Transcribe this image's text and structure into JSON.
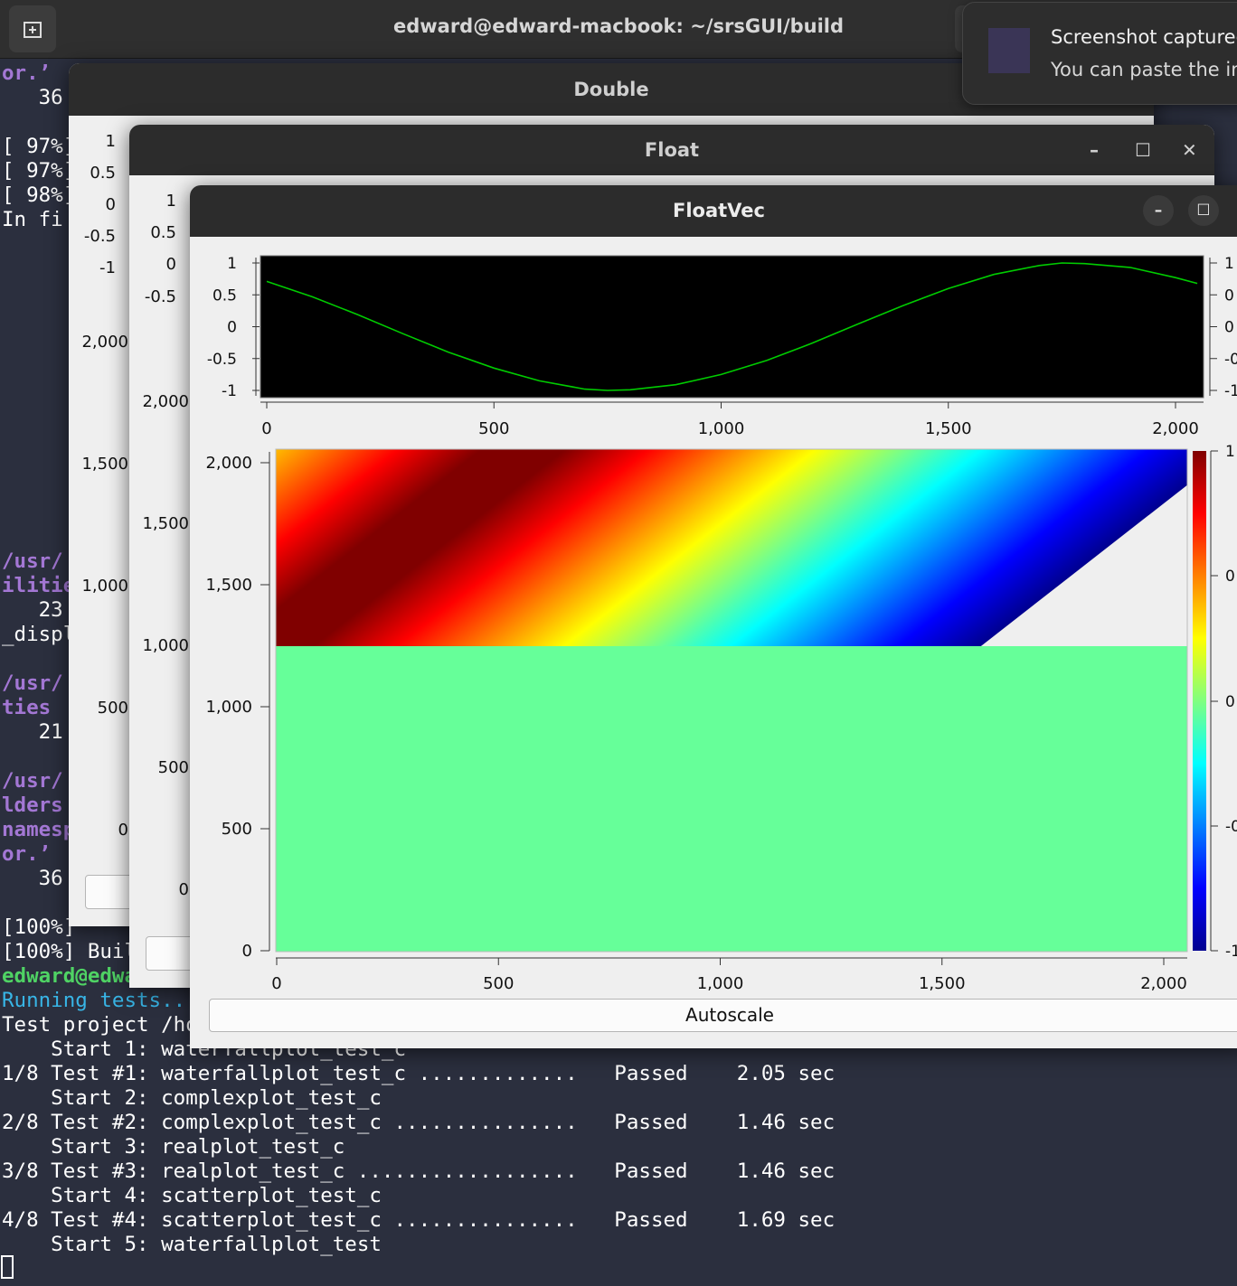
{
  "terminal": {
    "title": "edward@edward-macbook: ~/srsGUI/build",
    "lines_top": [
      {
        "text": "or.’",
        "cls": "purple"
      },
      {
        "text": "   36",
        "cls": ""
      },
      {
        "text": "",
        "cls": ""
      },
      {
        "text": "[ 97%]",
        "cls": ""
      },
      {
        "text": "[ 97%]",
        "cls": ""
      },
      {
        "text": "[ 98%]",
        "cls": ""
      },
      {
        "text": "In fi",
        "cls": ""
      }
    ],
    "lines_mid": [
      {
        "text": "/usr/",
        "cls": "purple"
      },
      {
        "text": "ilitie",
        "cls": "purple"
      },
      {
        "text": "   23",
        "cls": ""
      },
      {
        "text": "_displ",
        "cls": ""
      },
      {
        "text": "",
        "cls": ""
      },
      {
        "text": "/usr/",
        "cls": "purple"
      },
      {
        "text": "ties ",
        "cls": "purple"
      },
      {
        "text": "   21",
        "cls": ""
      },
      {
        "text": "",
        "cls": ""
      },
      {
        "text": "/usr/",
        "cls": "purple"
      },
      {
        "text": "lders",
        "cls": "purple"
      },
      {
        "text": "namesp",
        "cls": "purple"
      },
      {
        "text": "or.’",
        "cls": "purple"
      },
      {
        "text": "   36",
        "cls": ""
      },
      {
        "text": "",
        "cls": ""
      },
      {
        "text": "[100%]",
        "cls": ""
      },
      {
        "text": "[100%] Buil",
        "cls": ""
      },
      {
        "text": "edward@edwa",
        "cls": "green"
      },
      {
        "text": "Running tests..",
        "cls": "cyan"
      },
      {
        "text": "Test project /ho",
        "cls": ""
      },
      {
        "text": "    Start 1: waterfallplot_test_c",
        "cls": ""
      },
      {
        "text": "1/8 Test #1: waterfallplot_test_c .............   Passed    2.05 sec",
        "cls": ""
      },
      {
        "text": "    Start 2: complexplot_test_c",
        "cls": ""
      },
      {
        "text": "2/8 Test #2: complexplot_test_c ...............   Passed    1.46 sec",
        "cls": ""
      },
      {
        "text": "    Start 3: realplot_test_c",
        "cls": ""
      },
      {
        "text": "3/8 Test #3: realplot_test_c ..................   Passed    1.46 sec",
        "cls": ""
      },
      {
        "text": "    Start 4: scatterplot_test_c",
        "cls": ""
      },
      {
        "text": "4/8 Test #4: scatterplot_test_c ...............   Passed    1.69 sec",
        "cls": ""
      },
      {
        "text": "    Start 5: waterfallplot_test",
        "cls": ""
      }
    ]
  },
  "notification": {
    "title": "Screenshot captured",
    "body": "You can paste the im"
  },
  "windows": {
    "double": {
      "title": "Double",
      "y_ticks_top": [
        "1",
        "0.5",
        "0",
        "-0.5",
        "-1"
      ],
      "y_ticks_bottom": [
        "2,000",
        "1,500",
        "1,000",
        "500",
        "0"
      ]
    },
    "float": {
      "title": "Float",
      "y_ticks_top": [
        "1",
        "0.5",
        "0",
        "-0.5"
      ],
      "y_ticks_bottom": [
        "2,000",
        "1,500",
        "1,000",
        "500",
        "0"
      ],
      "minimize": "–",
      "maximize": "☐",
      "close": "✕"
    },
    "floatvec": {
      "title": "FloatVec",
      "minimize": "–",
      "maximize": "☐",
      "autoscale_label": "Autoscale"
    }
  },
  "colors": {
    "plot_bg": "#000000",
    "trace": "#00cc00",
    "empty_waterfall": "#66ff99"
  },
  "chart_data": [
    {
      "type": "line",
      "title": "",
      "xlabel": "",
      "ylabel": "",
      "x_ticks": [
        "0",
        "500",
        "1,000",
        "1,500",
        "2,000"
      ],
      "y_ticks": [
        "1",
        "0.5",
        "0",
        "-0.5",
        "-1"
      ],
      "right_y_ticks": [
        "1",
        "0",
        "0",
        "-0",
        "-1"
      ],
      "xlim": [
        0,
        2048
      ],
      "ylim": [
        -1,
        1
      ],
      "series": [
        {
          "x": [
            0,
            100,
            200,
            300,
            400,
            500,
            600,
            700,
            750,
            800,
            900,
            1000,
            1100,
            1200,
            1300,
            1400,
            1500,
            1600,
            1700,
            1750,
            1800,
            1900,
            2000,
            2048
          ],
          "y": [
            0.71,
            0.47,
            0.19,
            -0.11,
            -0.4,
            -0.65,
            -0.85,
            -0.98,
            -1.0,
            -0.99,
            -0.91,
            -0.75,
            -0.53,
            -0.26,
            0.04,
            0.33,
            0.6,
            0.82,
            0.96,
            1.0,
            0.99,
            0.93,
            0.77,
            0.68
          ]
        }
      ]
    },
    {
      "type": "heatmap",
      "title": "",
      "x_ticks": [
        "0",
        "500",
        "1,000",
        "1,500",
        "2,000"
      ],
      "y_ticks": [
        "2,000",
        "1,500",
        "1,000",
        "500",
        "0"
      ],
      "colorbar_ticks": [
        "1",
        "0",
        "0",
        "-0",
        "-1"
      ],
      "xlim": [
        0,
        2048
      ],
      "ylim": [
        0,
        2048
      ],
      "filled_rows_from": 1240,
      "value_range": [
        -1,
        1
      ],
      "colormap": "jet",
      "empty_value": 0
    }
  ]
}
